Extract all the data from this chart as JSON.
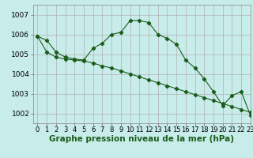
{
  "background_color": "#c8ecea",
  "grid_color": "#b0b0b0",
  "line_color": "#1a5c1a",
  "xlim": [
    -0.5,
    23
  ],
  "ylim": [
    1001.5,
    1007.5
  ],
  "yticks": [
    1002,
    1003,
    1004,
    1005,
    1006,
    1007
  ],
  "xticks": [
    0,
    1,
    2,
    3,
    4,
    5,
    6,
    7,
    8,
    9,
    10,
    11,
    12,
    13,
    14,
    15,
    16,
    17,
    18,
    19,
    20,
    21,
    22,
    23
  ],
  "series1_x": [
    0,
    1,
    2,
    3,
    4,
    5,
    6,
    7,
    8,
    9,
    10,
    11,
    12,
    13,
    14,
    15,
    16,
    17,
    18,
    19,
    20,
    21,
    22,
    23
  ],
  "series1_y": [
    1005.9,
    1005.7,
    1005.1,
    1004.85,
    1004.75,
    1004.7,
    1005.3,
    1005.55,
    1006.0,
    1006.1,
    1006.7,
    1006.7,
    1006.6,
    1006.0,
    1005.8,
    1005.5,
    1004.7,
    1004.3,
    1003.75,
    1003.1,
    1002.4,
    1002.9,
    1003.1,
    1001.9
  ],
  "series2_x": [
    0,
    1,
    2,
    3,
    4,
    5,
    6,
    7,
    8,
    9,
    10,
    11,
    12,
    13,
    14,
    15,
    16,
    17,
    18,
    19,
    20,
    21,
    22,
    23
  ],
  "series2_y": [
    1005.9,
    1005.1,
    1004.85,
    1004.75,
    1004.7,
    1004.65,
    1004.55,
    1004.4,
    1004.3,
    1004.15,
    1004.0,
    1003.85,
    1003.7,
    1003.55,
    1003.4,
    1003.25,
    1003.1,
    1002.95,
    1002.8,
    1002.65,
    1002.5,
    1002.35,
    1002.2,
    1002.05
  ],
  "xlabel": "Graphe pression niveau de la mer (hPa)",
  "xlabel_fontsize": 7.5,
  "tick_fontsize": 6.5
}
